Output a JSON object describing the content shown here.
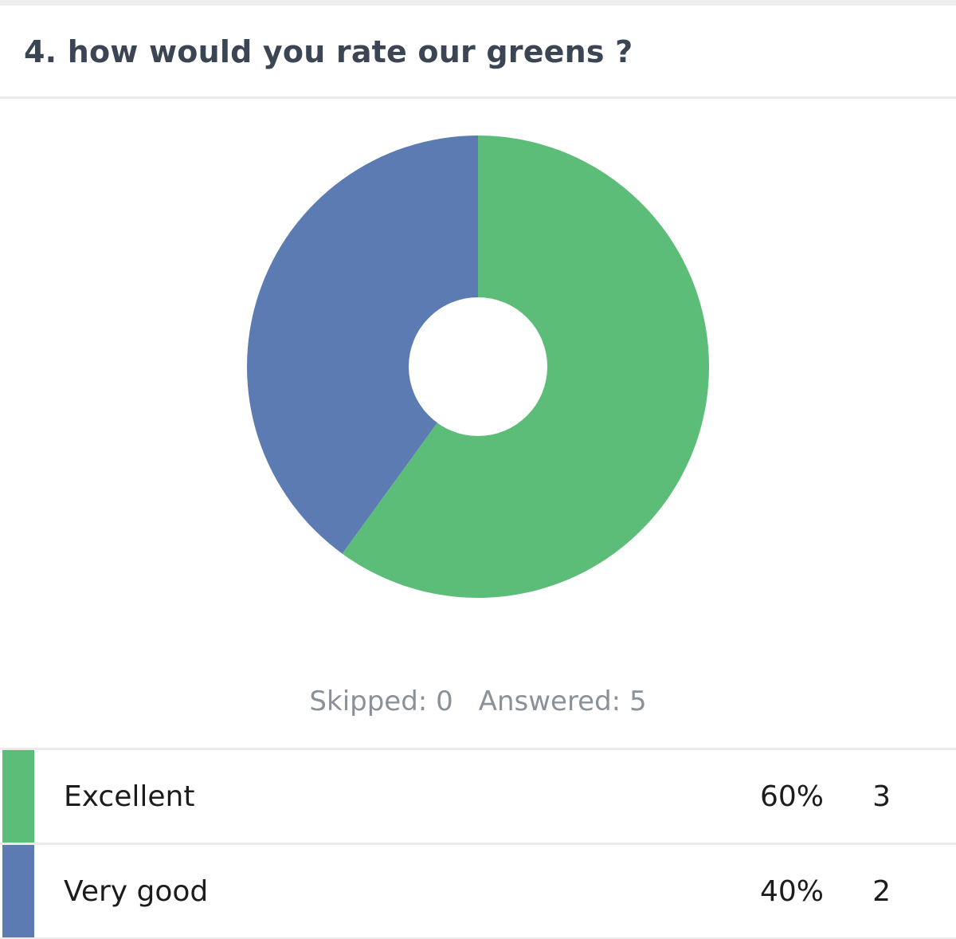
{
  "question": {
    "title": "4. how would you rate our greens ?"
  },
  "summary": {
    "skipped": "Skipped: 0",
    "answered": "Answered: 5"
  },
  "chart_data": {
    "type": "pie",
    "donut": true,
    "categories": [
      "Excellent",
      "Very good"
    ],
    "values": [
      3,
      2
    ],
    "percentages": [
      "60%",
      "40%"
    ],
    "colors": [
      "#5bbd77",
      "#5b7bb2"
    ]
  },
  "table": {
    "rows": [
      {
        "label": "Excellent",
        "percent": "60%",
        "count": "3",
        "color": "#5bbd77"
      },
      {
        "label": "Very good",
        "percent": "40%",
        "count": "2",
        "color": "#5b7bb2"
      }
    ]
  }
}
